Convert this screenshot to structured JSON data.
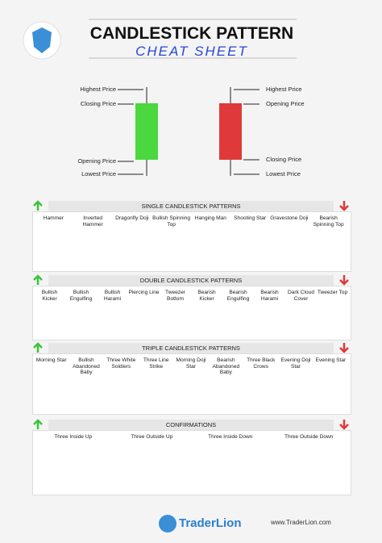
{
  "header": {
    "title": "CANDLESTICK PATTERN",
    "subtitle": "CHEAT SHEET"
  },
  "anatomy": {
    "bullish": [
      "Highest Price",
      "Closing Price",
      "Opening Price",
      "Lowest Price"
    ],
    "bearish": [
      "Highest Price",
      "Opening Price",
      "Closing Price",
      "Lowest Price"
    ]
  },
  "sections": [
    {
      "title": "SINGLE CANDLESTICK PATTERNS",
      "patterns": [
        "Hammer",
        "Inverted Hammer",
        "Dragonfly Doji",
        "Bullish Spinning Top",
        "Hanging Man",
        "Shooting Star",
        "Gravestone Doji",
        "Bearish Spinning Top"
      ]
    },
    {
      "title": "DOUBLE CANDLESTICK PATTERNS",
      "patterns": [
        "Bullish Kicker",
        "Bullish Engulfing",
        "Bullish Harami",
        "Piercing Line",
        "Tweezer Bottom",
        "Bearish Kicker",
        "Bearish Engulfing",
        "Bearish Harami",
        "Dark Cloud Cover",
        "Tweezer Top"
      ]
    },
    {
      "title": "TRIPLE CANDLESTICK PATTERNS",
      "patterns": [
        "Morning Star",
        "Bullish Abandoned Baby",
        "Three White Soldiers",
        "Three Line Strike",
        "Morning Doji Star",
        "Bearish Abandoned Baby",
        "Three Black Crows",
        "Evening Doji Star",
        "Evening Star"
      ]
    },
    {
      "title": "CONFIRMATIONS",
      "patterns": [
        "Three Inside Up",
        "Three Outside Up",
        "Three Inside Down",
        "Three Outside Down"
      ]
    }
  ],
  "footer": {
    "brand": "TraderLion",
    "url": "www.TraderLion.com"
  }
}
